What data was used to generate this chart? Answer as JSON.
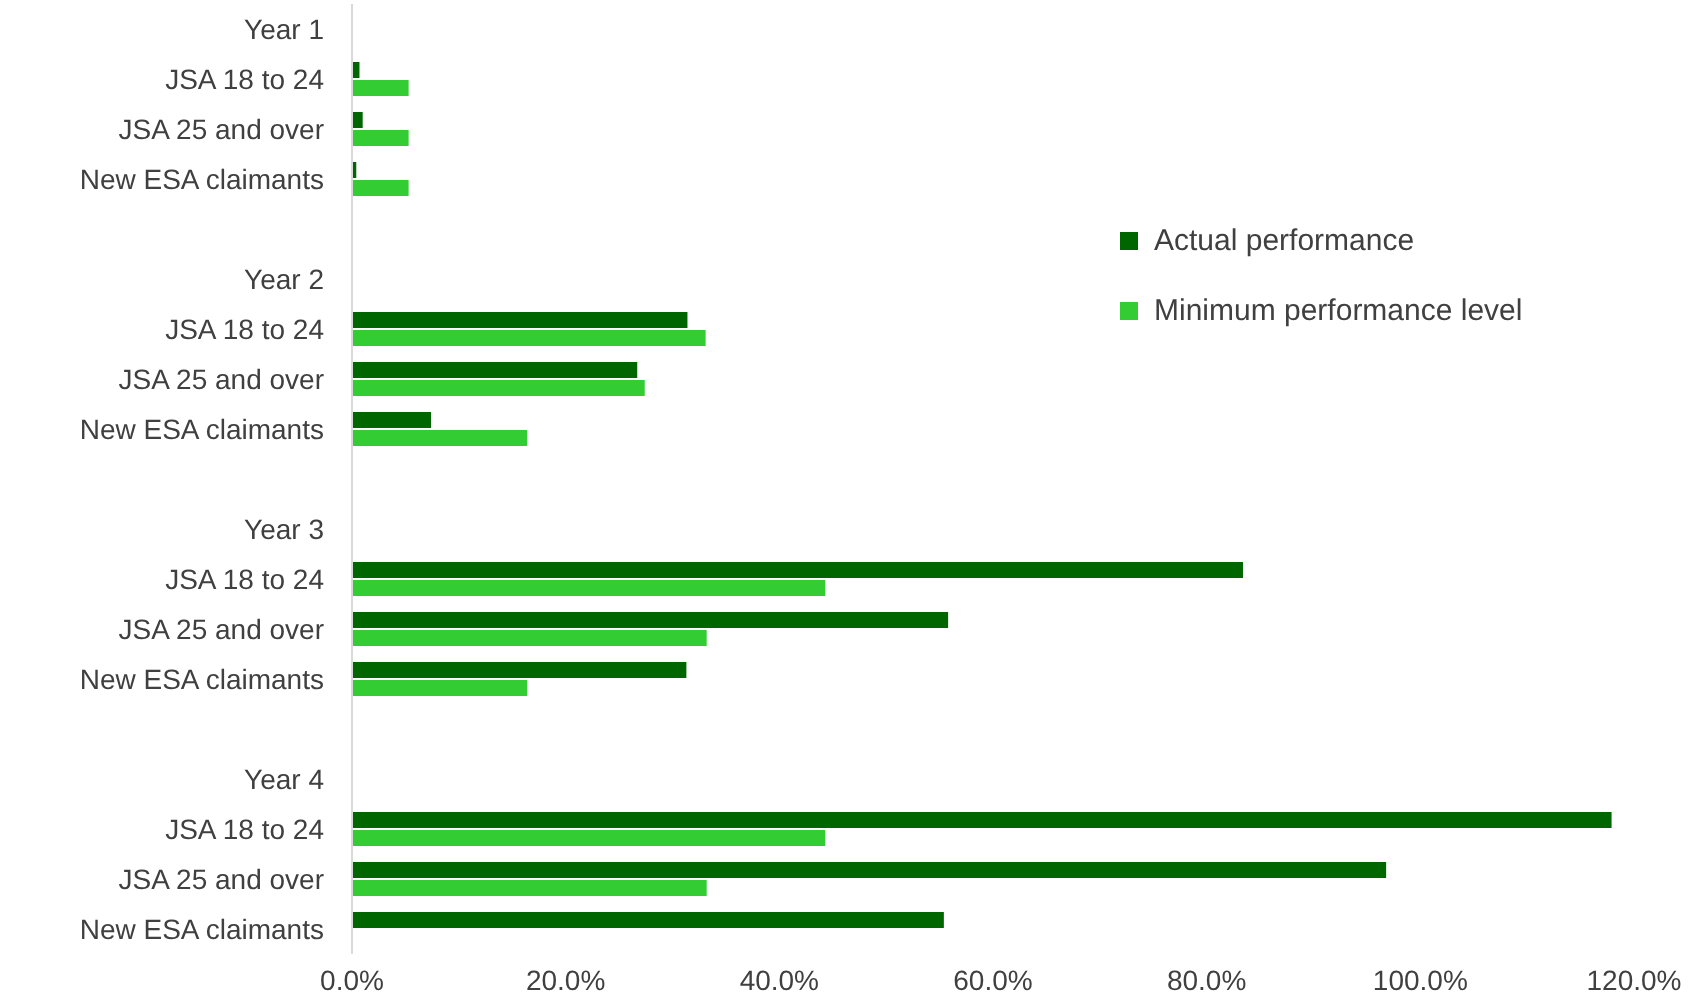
{
  "chart_data": {
    "type": "bar",
    "orientation": "horizontal",
    "categories": [
      "Year 1",
      "JSA 18 to 24",
      "JSA 25 and over",
      "New ESA claimants",
      null,
      "Year 2",
      "JSA 18 to 24",
      "JSA 25 and over",
      "New ESA claimants",
      null,
      "Year 3",
      "JSA 18 to 24",
      "JSA 25 and over",
      "New ESA claimants",
      null,
      "Year 4",
      "JSA 18 to 24",
      "JSA 25 and over",
      "New ESA claimants"
    ],
    "series": [
      {
        "name": "Actual performance",
        "color": "#006600",
        "values": [
          null,
          0.7,
          1.0,
          0.4,
          null,
          null,
          31.4,
          26.7,
          7.4,
          null,
          null,
          83.4,
          55.8,
          31.3,
          null,
          null,
          117.9,
          96.8,
          55.4
        ]
      },
      {
        "name": "Minimum performance level",
        "color": "#33cc33",
        "values": [
          null,
          5.3,
          5.3,
          5.3,
          null,
          null,
          33.1,
          27.4,
          16.4,
          null,
          null,
          44.3,
          33.2,
          16.4,
          null,
          null,
          44.3,
          33.2,
          null
        ]
      }
    ],
    "xlim": [
      0,
      120
    ],
    "xticks": [
      {
        "value": 0,
        "label": "0.0%"
      },
      {
        "value": 20,
        "label": "20.0%"
      },
      {
        "value": 40,
        "label": "40.0%"
      },
      {
        "value": 60,
        "label": "60.0%"
      },
      {
        "value": 80,
        "label": "80.0%"
      },
      {
        "value": 100,
        "label": "100.0%"
      },
      {
        "value": 120,
        "label": "120.0%"
      }
    ],
    "grid": false,
    "legend": "right"
  }
}
